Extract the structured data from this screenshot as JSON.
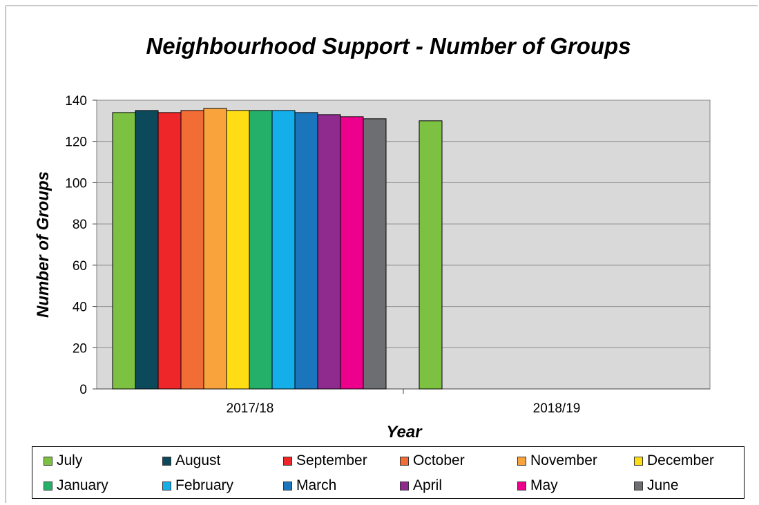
{
  "chart_data": {
    "type": "bar",
    "title": "Neighbourhood Support - Number of Groups",
    "xlabel": "Year",
    "ylabel": "Number of Groups",
    "ylim": [
      0,
      140
    ],
    "yticks": [
      0,
      20,
      40,
      60,
      80,
      100,
      120,
      140
    ],
    "categories": [
      "2017/18",
      "2018/19"
    ],
    "grid": true,
    "legend_position": "bottom",
    "series": [
      {
        "name": "July",
        "color": "#7dc142",
        "values": [
          134,
          130
        ]
      },
      {
        "name": "August",
        "color": "#0c4a5b",
        "values": [
          135,
          null
        ]
      },
      {
        "name": "September",
        "color": "#ee2529",
        "values": [
          134,
          null
        ]
      },
      {
        "name": "October",
        "color": "#f26c36",
        "values": [
          135,
          null
        ]
      },
      {
        "name": "November",
        "color": "#f9a33c",
        "values": [
          136,
          null
        ]
      },
      {
        "name": "December",
        "color": "#ffdd15",
        "values": [
          135,
          null
        ]
      },
      {
        "name": "January",
        "color": "#24b068",
        "values": [
          135,
          null
        ]
      },
      {
        "name": "February",
        "color": "#14aeea",
        "values": [
          135,
          null
        ]
      },
      {
        "name": "March",
        "color": "#1b75bc",
        "values": [
          134,
          null
        ]
      },
      {
        "name": "April",
        "color": "#8f2a8e",
        "values": [
          133,
          null
        ]
      },
      {
        "name": "May",
        "color": "#ec008c",
        "values": [
          132,
          null
        ]
      },
      {
        "name": "June",
        "color": "#6d6e71",
        "values": [
          131,
          null
        ]
      }
    ]
  }
}
